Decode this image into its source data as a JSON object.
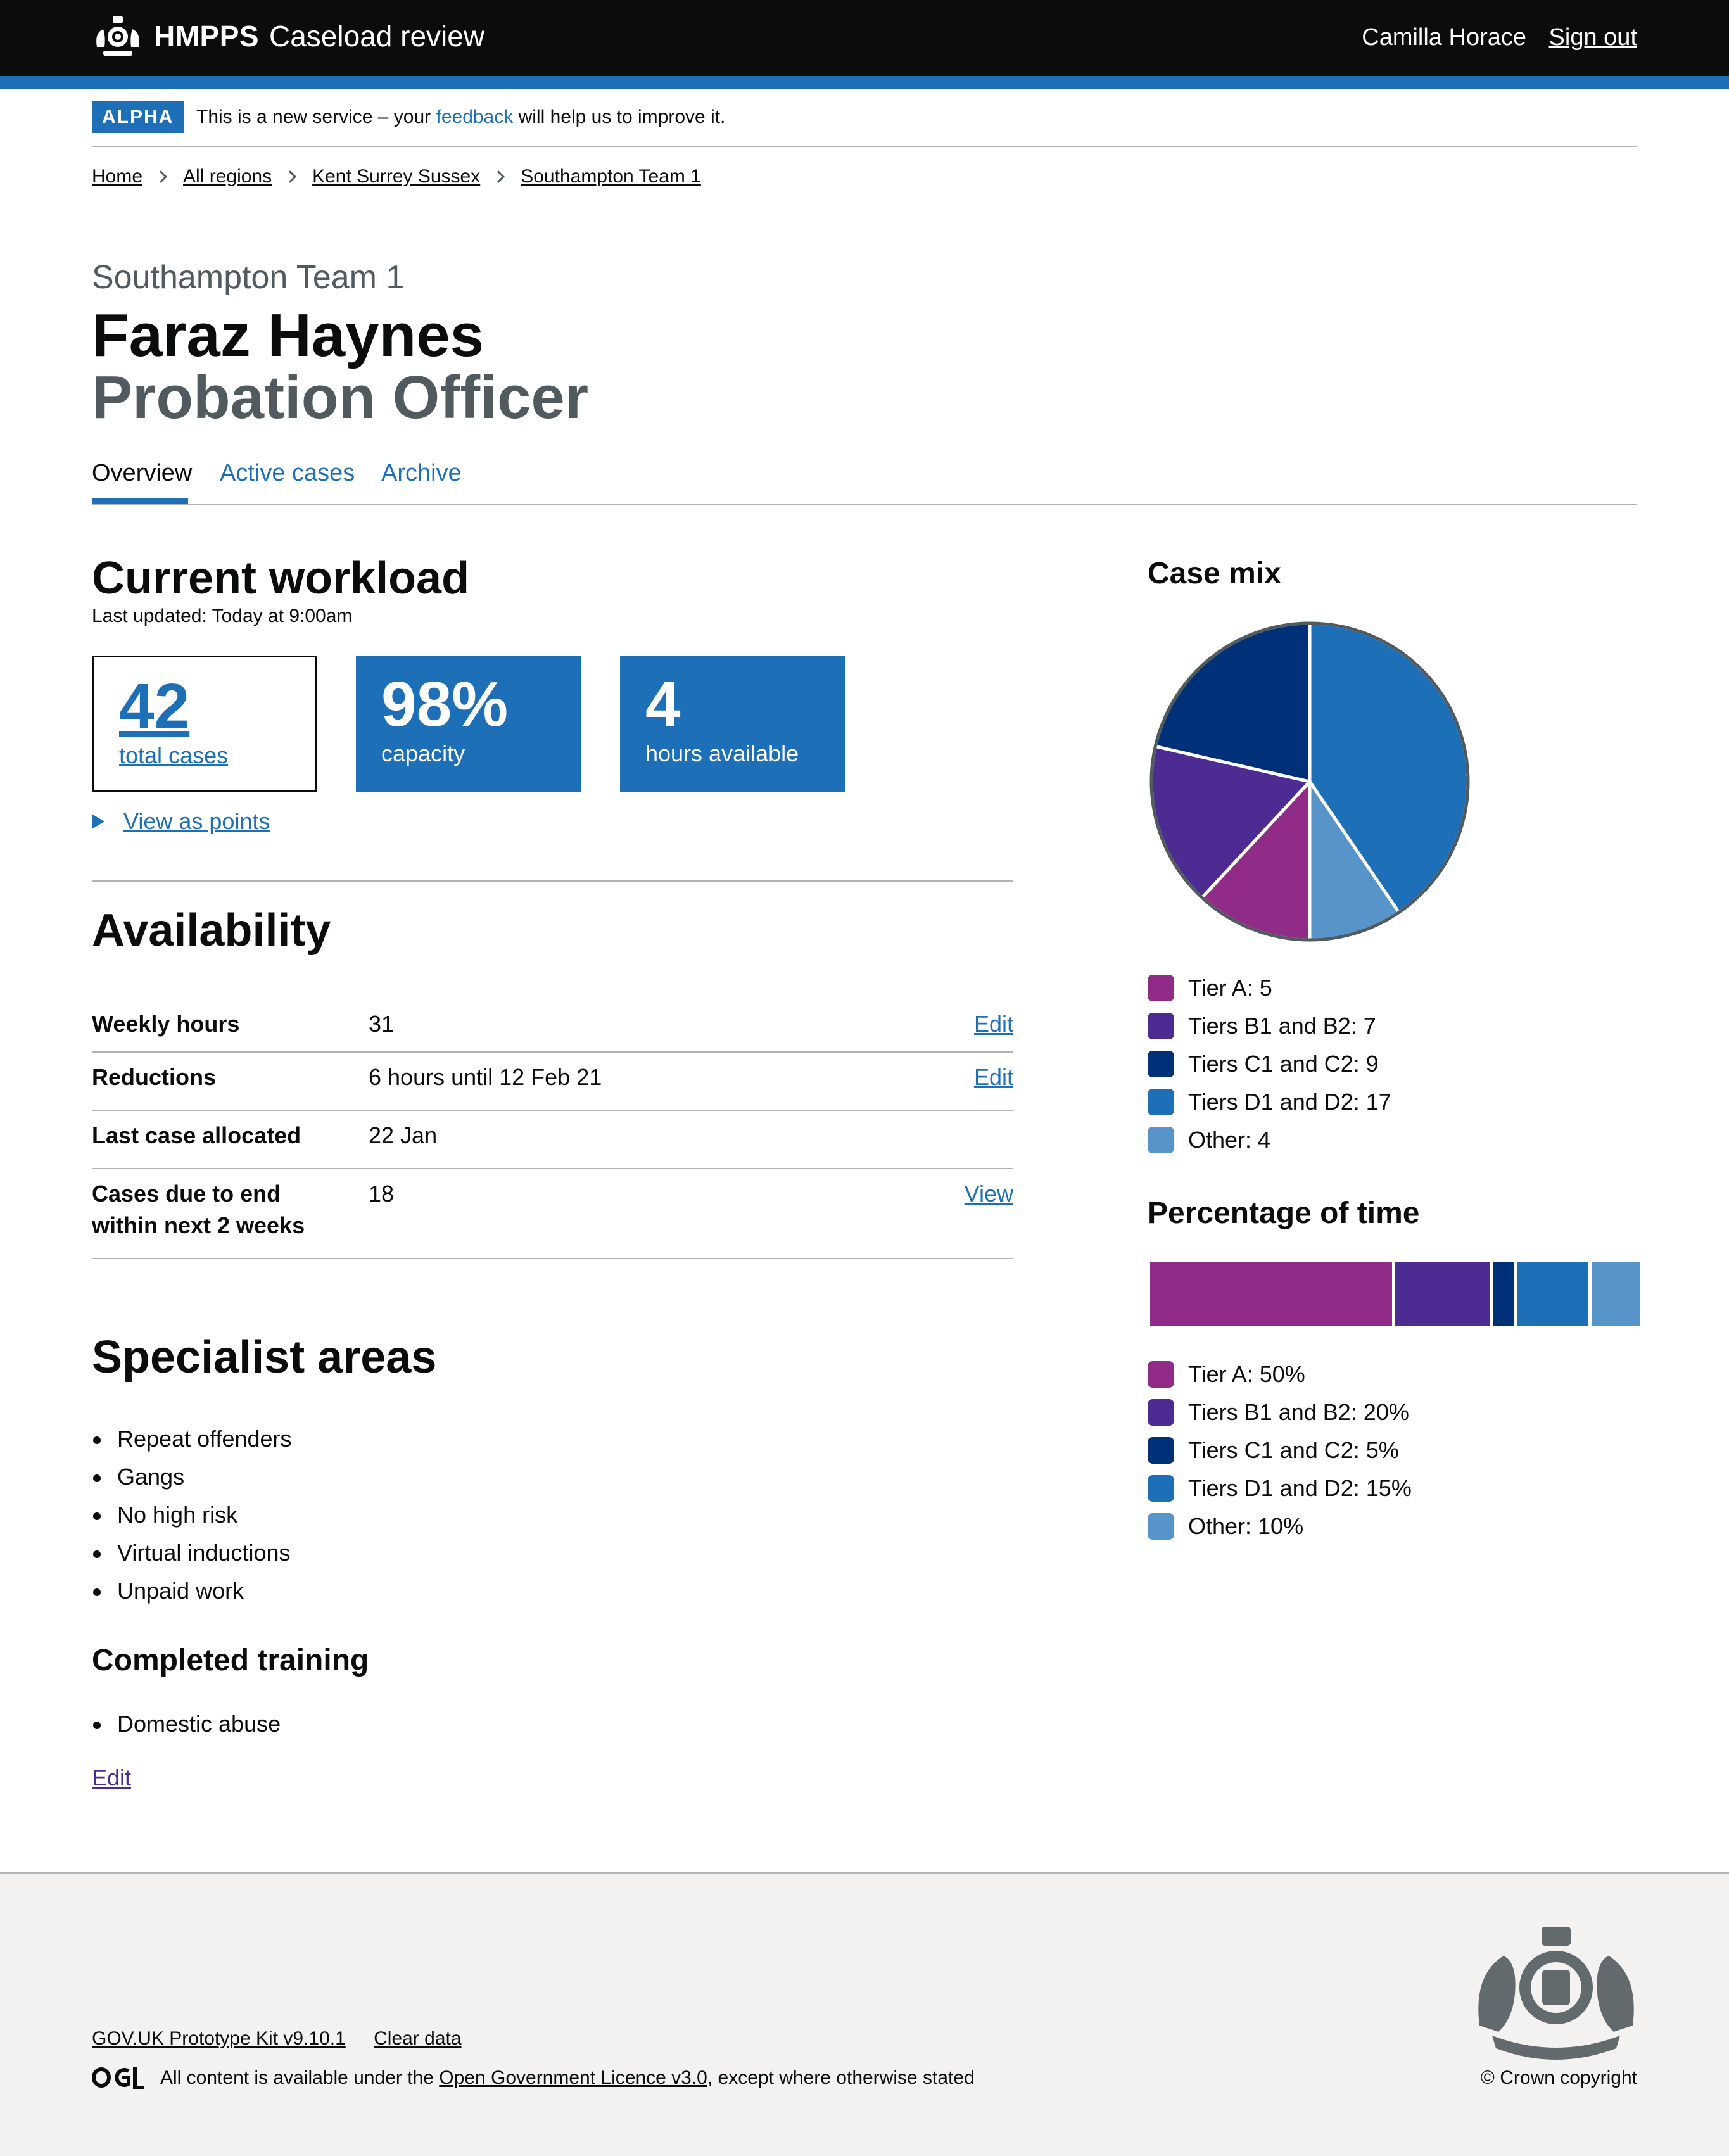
{
  "header": {
    "brand": "HMPPS",
    "service_name": "Caseload review",
    "user_name": "Camilla Horace",
    "sign_out": "Sign out"
  },
  "phase_banner": {
    "tag": "ALPHA",
    "text_before": "This is a new service – your ",
    "link": "feedback",
    "text_after": " will help us to improve it."
  },
  "breadcrumbs": [
    "Home",
    "All regions",
    "Kent Surrey Sussex",
    "Southampton Team 1"
  ],
  "page": {
    "caption": "Southampton Team 1",
    "name": "Faraz Haynes",
    "role": "Probation Officer"
  },
  "tabs": [
    {
      "label": "Overview",
      "selected": true
    },
    {
      "label": "Active cases",
      "selected": false
    },
    {
      "label": "Archive",
      "selected": false
    }
  ],
  "workload": {
    "heading": "Current workload",
    "last_updated": "Last updated: Today at 9:00am",
    "cards": [
      {
        "value": "42",
        "label": "total cases"
      },
      {
        "value": "98%",
        "label": "capacity"
      },
      {
        "value": "4",
        "label": "hours available"
      }
    ],
    "details_link": "View as points"
  },
  "availability": {
    "heading": "Availability",
    "rows": [
      {
        "key": "Weekly hours",
        "value": "31",
        "action": "Edit"
      },
      {
        "key": "Reductions",
        "value": "6 hours until 12 Feb 21",
        "action": "Edit"
      },
      {
        "key": "Last case allocated",
        "value": "22 Jan",
        "action": ""
      },
      {
        "key_line1": "Cases due to end",
        "key_line2": "within next 2 weeks",
        "value": "18",
        "action": "View"
      }
    ]
  },
  "specialist": {
    "heading": "Specialist areas",
    "items": [
      "Repeat offenders",
      "Gangs",
      "No high risk",
      "Virtual inductions",
      "Unpaid work"
    ],
    "training_heading": "Completed training",
    "training_items": [
      "Domestic abuse"
    ],
    "edit": "Edit"
  },
  "colors": {
    "tier_a": "#912b88",
    "tier_b": "#4c2c92",
    "tier_c": "#003078",
    "tier_d": "#1d70b8",
    "other": "#5694ca"
  },
  "chart_data": [
    {
      "type": "pie",
      "title": "Case mix",
      "categories": [
        "Tier A",
        "Tiers B1 and B2",
        "Tiers C1 and C2",
        "Tiers D1 and D2",
        "Other"
      ],
      "values": [
        5,
        7,
        9,
        17,
        4
      ],
      "legend": [
        "Tier A: 5",
        "Tiers B1 and B2: 7",
        "Tiers C1 and C2: 9",
        "Tiers D1 and D2: 17",
        "Other: 4"
      ],
      "colors": [
        "#912b88",
        "#4c2c92",
        "#003078",
        "#1d70b8",
        "#5694ca"
      ]
    },
    {
      "type": "bar",
      "title": "Percentage of time",
      "categories": [
        "Tier A",
        "Tiers B1 and B2",
        "Tiers C1 and C2",
        "Tiers D1 and D2",
        "Other"
      ],
      "values": [
        50,
        20,
        5,
        15,
        10
      ],
      "legend": [
        "Tier A: 50%",
        "Tiers B1 and B2: 20%",
        "Tiers C1 and C2: 5%",
        "Tiers D1 and D2: 15%",
        "Other: 10%"
      ],
      "colors": [
        "#912b88",
        "#4c2c92",
        "#003078",
        "#1d70b8",
        "#5694ca"
      ]
    }
  ],
  "footer": {
    "links": [
      "GOV.UK Prototype Kit v9.10.1",
      "Clear data"
    ],
    "licence_before": "All content is available under the ",
    "licence_link": "Open Government Licence v3.0",
    "licence_after": ", except where otherwise stated",
    "copyright": "© Crown copyright"
  }
}
